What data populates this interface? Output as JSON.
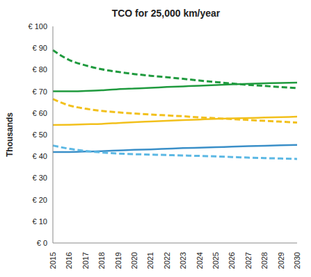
{
  "chart_data": {
    "type": "line",
    "title": "TCO for 25,000 km/year",
    "y_label": "Thousands",
    "categories": [
      "2015",
      "2016",
      "2017",
      "2018",
      "2019",
      "2020",
      "2021",
      "2022",
      "2023",
      "2024",
      "2025",
      "2026",
      "2027",
      "2028",
      "2029",
      "2030"
    ],
    "series": [
      {
        "color": "#1f9a3e",
        "line_style": "solid",
        "values": [
          70,
          70,
          70.2,
          70.5,
          71,
          71.3,
          71.6,
          72,
          72.3,
          72.6,
          72.9,
          73.2,
          73.5,
          73.7,
          73.9,
          74
        ]
      },
      {
        "color": "#1f9a3e",
        "line_style": "dashed",
        "values": [
          89,
          84.5,
          82,
          80.2,
          79,
          78,
          77.2,
          76.5,
          75.8,
          75,
          74.3,
          73.6,
          73,
          72.5,
          72,
          71.5
        ]
      },
      {
        "color": "#f2c01c",
        "line_style": "solid",
        "values": [
          54.5,
          54.6,
          54.8,
          55,
          55.4,
          55.8,
          56.1,
          56.4,
          56.7,
          57,
          57.3,
          57.5,
          57.7,
          57.9,
          58.1,
          58.3
        ]
      },
      {
        "color": "#f2c01c",
        "line_style": "dashed",
        "values": [
          66.5,
          63.5,
          62,
          61,
          60.3,
          59.8,
          59.3,
          58.9,
          58.5,
          58,
          57.6,
          57.2,
          56.8,
          56.4,
          56,
          55.6
        ]
      },
      {
        "color": "#3a8fc8",
        "line_style": "solid",
        "values": [
          42,
          42,
          42.2,
          42.4,
          42.7,
          43,
          43.2,
          43.5,
          43.8,
          44,
          44.2,
          44.5,
          44.7,
          44.9,
          45.1,
          45.3
        ]
      },
      {
        "color": "#5cb8e4",
        "line_style": "dashed",
        "values": [
          45,
          43.5,
          42.5,
          41.8,
          41.3,
          41,
          40.8,
          40.6,
          40.4,
          40.2,
          40,
          39.7,
          39.4,
          39.2,
          39,
          38.8
        ]
      }
    ],
    "ylim": [
      0,
      100
    ],
    "yticks": [
      {
        "value": 0,
        "label": "€ 0"
      },
      {
        "value": 10,
        "label": "€ 10"
      },
      {
        "value": 20,
        "label": "€ 20"
      },
      {
        "value": 30,
        "label": "€ 30"
      },
      {
        "value": 40,
        "label": "€ 40"
      },
      {
        "value": 50,
        "label": "€ 50"
      },
      {
        "value": 60,
        "label": "€ 60"
      },
      {
        "value": 70,
        "label": "€ 70"
      },
      {
        "value": 80,
        "label": "€ 80"
      },
      {
        "value": 90,
        "label": "€ 90"
      },
      {
        "value": 100,
        "label": "€ 100"
      }
    ],
    "grid": false
  }
}
